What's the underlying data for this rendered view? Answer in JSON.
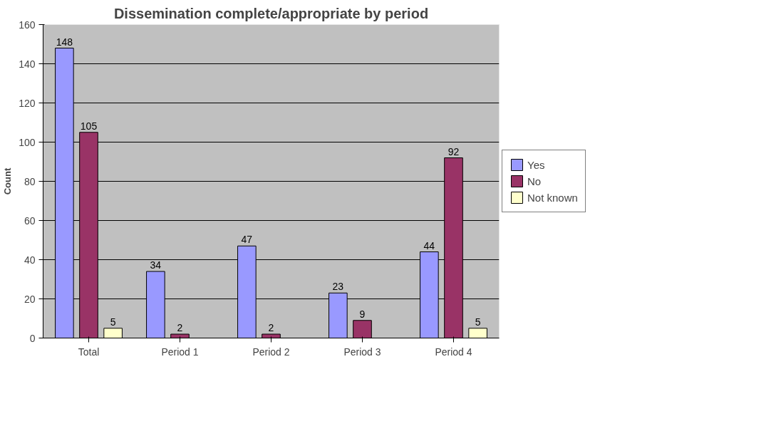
{
  "chart_data": {
    "type": "bar",
    "title": "Dissemination complete/appropriate by period",
    "ylabel": "Count",
    "categories": [
      "Total",
      "Period 1",
      "Period 2",
      "Period 3",
      "Period 4"
    ],
    "series": [
      {
        "name": "Yes",
        "color": "#9999ff",
        "values": [
          148,
          34,
          47,
          23,
          44
        ]
      },
      {
        "name": "No",
        "color": "#993366",
        "values": [
          105,
          2,
          2,
          9,
          92
        ]
      },
      {
        "name": "Not known",
        "color": "#ffffcc",
        "values": [
          5,
          null,
          null,
          null,
          5
        ]
      }
    ],
    "ylim": [
      0,
      160
    ],
    "yticks": [
      0,
      20,
      40,
      60,
      80,
      100,
      120,
      140,
      160
    ],
    "grid": "y",
    "legend": "right",
    "data_labels": true
  }
}
